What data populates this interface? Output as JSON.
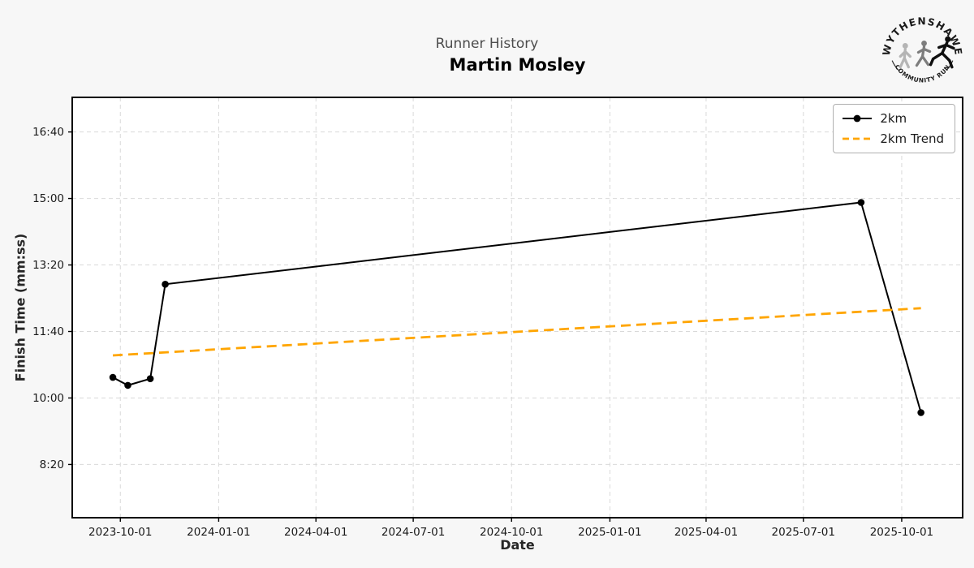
{
  "page": {
    "background": "#f7f7f7"
  },
  "header": {
    "suptitle": "Runner History",
    "title": "Martin Mosley"
  },
  "logo": {
    "top_text": "WYTHENSHAWE",
    "bottom_text": "COMMUNITY RUN"
  },
  "chart_data": {
    "type": "line",
    "suptitle": "Runner History",
    "title": "Martin Mosley",
    "xlabel": "Date",
    "ylabel": "Finish Time (mm:ss)",
    "grid": true,
    "legend_position": "upper right",
    "x_domain": [
      "2023-08-17",
      "2025-11-27"
    ],
    "y_domain_seconds": [
      420,
      1052
    ],
    "x_ticks": [
      "2023-10-01",
      "2024-01-01",
      "2024-04-01",
      "2024-07-01",
      "2024-10-01",
      "2025-01-01",
      "2025-04-01",
      "2025-07-01",
      "2025-10-01"
    ],
    "y_ticks": [
      {
        "label": "8:20",
        "seconds": 500
      },
      {
        "label": "10:00",
        "seconds": 600
      },
      {
        "label": "11:40",
        "seconds": 700
      },
      {
        "label": "13:20",
        "seconds": 800
      },
      {
        "label": "15:00",
        "seconds": 900
      },
      {
        "label": "16:40",
        "seconds": 1000
      }
    ],
    "colors": {
      "line": "#000000",
      "trend": "#FFA500",
      "grid": "#d9d9d9",
      "plot_bg": "#ffffff"
    },
    "series": [
      {
        "name": "2km",
        "style": "solid-with-markers",
        "color": "#000000",
        "points": [
          {
            "date": "2023-09-24",
            "time": "10:31",
            "seconds": 631
          },
          {
            "date": "2023-10-08",
            "time": "10:19",
            "seconds": 619
          },
          {
            "date": "2023-10-29",
            "time": "10:29",
            "seconds": 629
          },
          {
            "date": "2023-11-12",
            "time": "12:51",
            "seconds": 771
          },
          {
            "date": "2025-08-24",
            "time": "14:54",
            "seconds": 894
          },
          {
            "date": "2025-10-19",
            "time": "9:38",
            "seconds": 578
          }
        ]
      },
      {
        "name": "2km Trend",
        "style": "dashed",
        "color": "#FFA500",
        "points": [
          {
            "date": "2023-09-24",
            "time": "11:04",
            "seconds": 664
          },
          {
            "date": "2025-10-19",
            "time": "12:15",
            "seconds": 735
          }
        ]
      }
    ]
  }
}
